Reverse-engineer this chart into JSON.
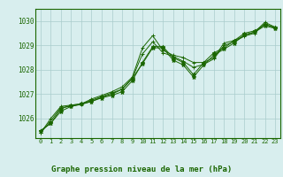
{
  "title": "Graphe pression niveau de la mer (hPa)",
  "bg_color": "#d8eeee",
  "grid_color": "#aacccc",
  "line_color": "#1a6600",
  "marker_color": "#1a6600",
  "text_color": "#1a6600",
  "xlim_min": -0.5,
  "xlim_max": 23.5,
  "ylim_min": 1025.2,
  "ylim_max": 1030.5,
  "yticks": [
    1026,
    1027,
    1028,
    1029,
    1030
  ],
  "xticks": [
    0,
    1,
    2,
    3,
    4,
    5,
    6,
    7,
    8,
    9,
    10,
    11,
    12,
    13,
    14,
    15,
    16,
    17,
    18,
    19,
    20,
    21,
    22,
    23
  ],
  "series": [
    [
      1025.5,
      1025.8,
      1026.3,
      1026.5,
      1026.6,
      1026.7,
      1026.85,
      1026.95,
      1027.1,
      1027.55,
      1028.3,
      1028.95,
      1028.95,
      1028.5,
      1028.3,
      1027.8,
      1028.3,
      1028.7,
      1028.9,
      1029.2,
      1029.5,
      1029.6,
      1029.85,
      1029.75
    ],
    [
      1025.5,
      1025.8,
      1026.4,
      1026.55,
      1026.6,
      1026.75,
      1026.9,
      1027.05,
      1027.2,
      1027.65,
      1028.25,
      1028.9,
      1028.9,
      1028.4,
      1028.2,
      1027.7,
      1028.2,
      1028.6,
      1028.85,
      1029.1,
      1029.45,
      1029.55,
      1029.8,
      1029.7
    ],
    [
      1025.4,
      1026.0,
      1026.5,
      1026.55,
      1026.6,
      1026.8,
      1026.95,
      1027.1,
      1027.3,
      1027.7,
      1028.9,
      1029.4,
      1028.8,
      1028.6,
      1028.5,
      1028.3,
      1028.3,
      1028.5,
      1029.1,
      1029.2,
      1029.4,
      1029.55,
      1029.95,
      1029.75
    ],
    [
      1025.4,
      1025.9,
      1026.45,
      1026.5,
      1026.58,
      1026.7,
      1026.88,
      1027.0,
      1027.2,
      1027.65,
      1028.65,
      1029.15,
      1028.7,
      1028.55,
      1028.35,
      1028.1,
      1028.22,
      1028.45,
      1029.0,
      1029.15,
      1029.38,
      1029.5,
      1029.9,
      1029.7
    ]
  ]
}
